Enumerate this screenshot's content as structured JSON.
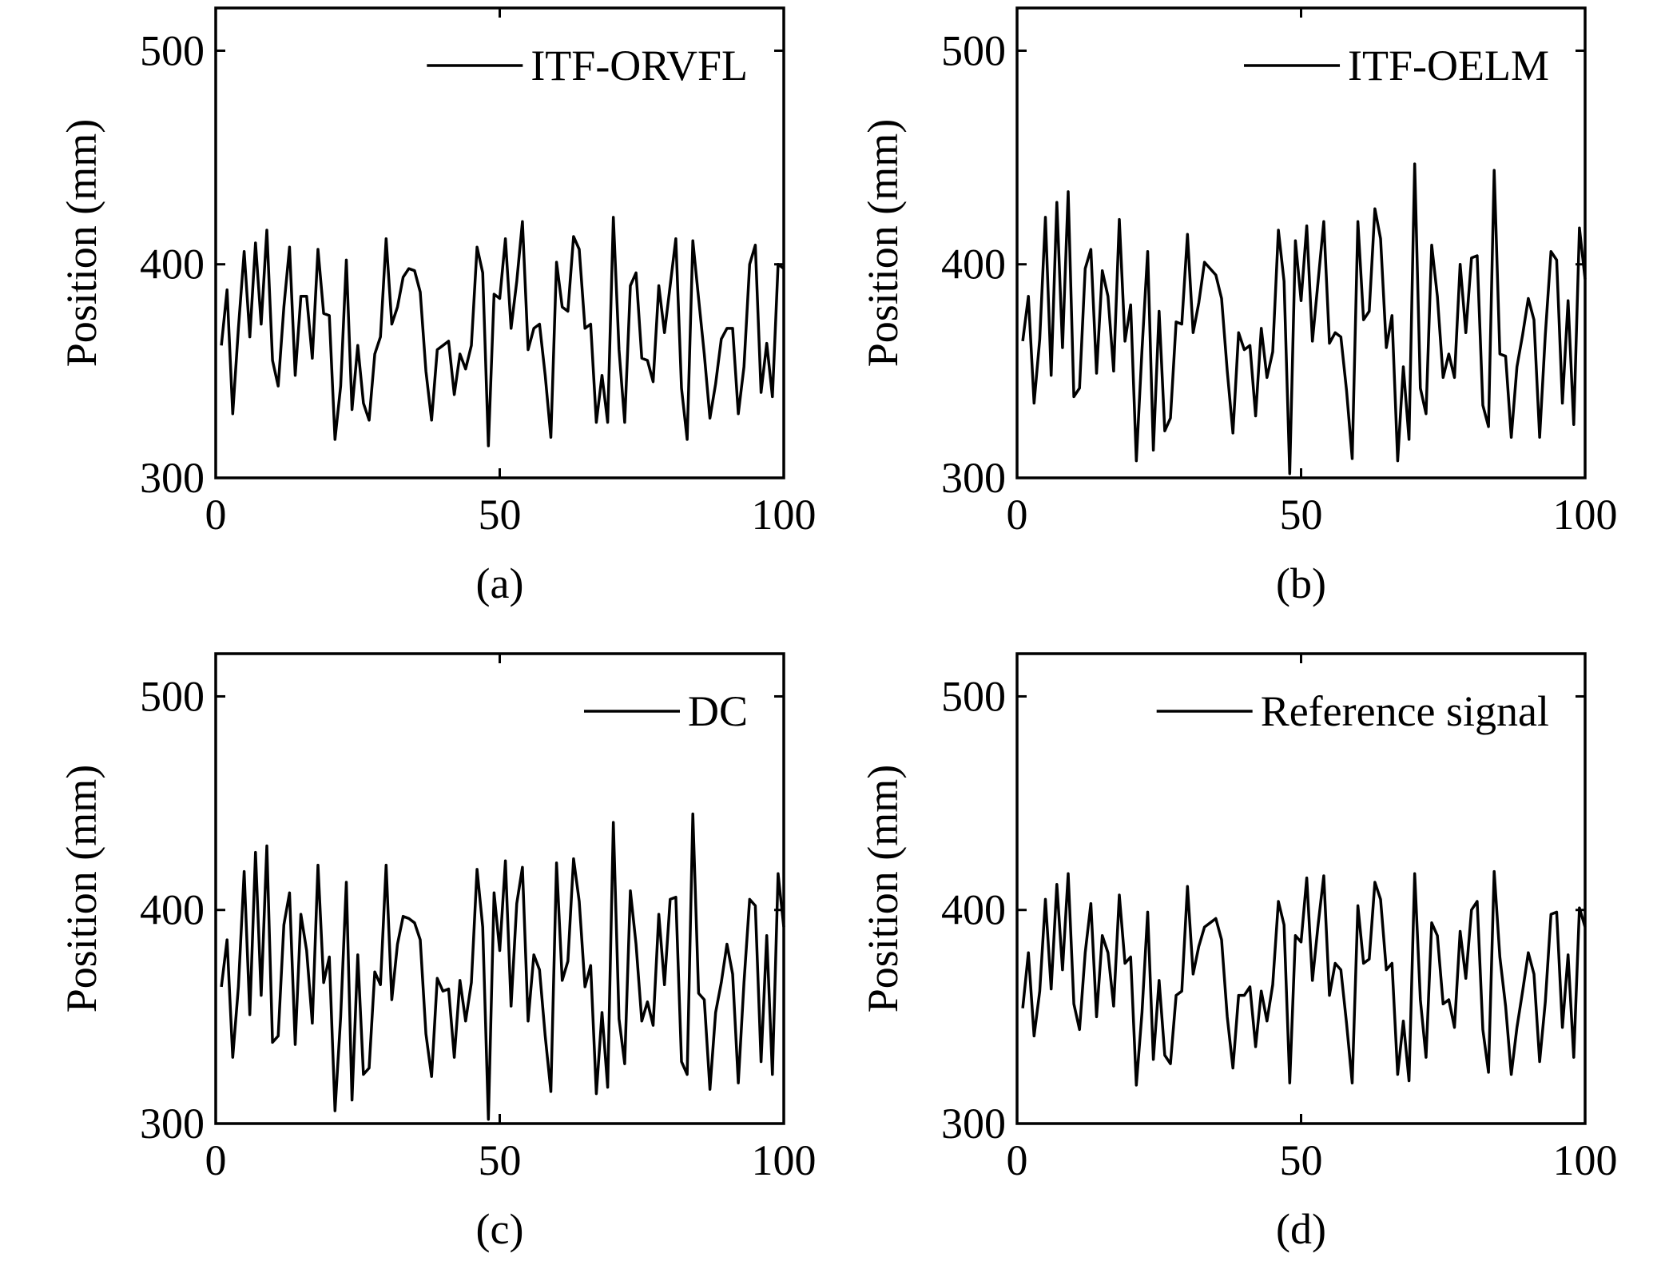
{
  "chart_data": [
    {
      "type": "line",
      "xlim": [
        0,
        100
      ],
      "ylim": [
        300,
        520
      ],
      "xticks": [
        "0",
        "50",
        "100"
      ],
      "yticks": [
        "300",
        "400",
        "500"
      ],
      "ylabel": "Position (mm)",
      "caption": "(a)",
      "legend_position": "top-right",
      "grid": false,
      "series": [
        {
          "name": "ITF-ORVFL",
          "color": "#000000",
          "x": [
            1,
            2,
            3,
            4,
            5,
            6,
            7,
            8,
            9,
            10,
            11,
            12,
            13,
            14,
            15,
            16,
            17,
            18,
            19,
            20,
            21,
            22,
            23,
            24,
            25,
            26,
            27,
            28,
            29,
            30,
            31,
            32,
            33,
            34,
            35,
            36,
            37,
            38,
            39,
            40,
            41,
            42,
            43,
            44,
            45,
            46,
            47,
            48,
            49,
            50,
            51,
            52,
            53,
            54,
            55,
            56,
            57,
            58,
            59,
            60,
            61,
            62,
            63,
            64,
            65,
            66,
            67,
            68,
            69,
            70,
            71,
            72,
            73,
            74,
            75,
            76,
            77,
            78,
            79,
            80,
            81,
            82,
            83,
            84,
            85,
            86,
            87,
            88,
            89,
            90,
            91,
            92,
            93,
            94,
            95,
            96,
            97,
            98,
            99,
            100
          ],
          "y": [
            362,
            388,
            330,
            370,
            406,
            366,
            410,
            372,
            416,
            355,
            343,
            380,
            408,
            348,
            385,
            385,
            356,
            407,
            377,
            376,
            318,
            343,
            402,
            332,
            362,
            335,
            327,
            358,
            366,
            412,
            372,
            380,
            394,
            398,
            397,
            387,
            350,
            327,
            360,
            362,
            364,
            339,
            358,
            351,
            362,
            408,
            396,
            315,
            386,
            384,
            412,
            370,
            392,
            420,
            360,
            370,
            372,
            348,
            319,
            401,
            380,
            378,
            413,
            407,
            370,
            372,
            326,
            348,
            326,
            422,
            360,
            326,
            390,
            396,
            356,
            355,
            345,
            390,
            368,
            390,
            412,
            342,
            318,
            411,
            384,
            358,
            328,
            344,
            365,
            370,
            370,
            330,
            352,
            400,
            409,
            340,
            363,
            338,
            400,
            398
          ]
        }
      ]
    },
    {
      "type": "line",
      "xlim": [
        0,
        100
      ],
      "ylim": [
        300,
        520
      ],
      "xticks": [
        "0",
        "50",
        "100"
      ],
      "yticks": [
        "300",
        "400",
        "500"
      ],
      "ylabel": "Position (mm)",
      "caption": "(b)",
      "legend_position": "top-right",
      "grid": false,
      "series": [
        {
          "name": "ITF-OELM",
          "color": "#000000",
          "x": [
            1,
            2,
            3,
            4,
            5,
            6,
            7,
            8,
            9,
            10,
            11,
            12,
            13,
            14,
            15,
            16,
            17,
            18,
            19,
            20,
            21,
            22,
            23,
            24,
            25,
            26,
            27,
            28,
            29,
            30,
            31,
            32,
            33,
            34,
            35,
            36,
            37,
            38,
            39,
            40,
            41,
            42,
            43,
            44,
            45,
            46,
            47,
            48,
            49,
            50,
            51,
            52,
            53,
            54,
            55,
            56,
            57,
            58,
            59,
            60,
            61,
            62,
            63,
            64,
            65,
            66,
            67,
            68,
            69,
            70,
            71,
            72,
            73,
            74,
            75,
            76,
            77,
            78,
            79,
            80,
            81,
            82,
            83,
            84,
            85,
            86,
            87,
            88,
            89,
            90,
            91,
            92,
            93,
            94,
            95,
            96,
            97,
            98,
            99,
            100
          ],
          "y": [
            364,
            385,
            335,
            365,
            422,
            348,
            429,
            361,
            434,
            338,
            342,
            398,
            407,
            349,
            397,
            385,
            350,
            421,
            364,
            381,
            308,
            360,
            406,
            313,
            378,
            322,
            328,
            373,
            372,
            414,
            368,
            382,
            401,
            398,
            395,
            384,
            350,
            321,
            368,
            360,
            362,
            329,
            370,
            347,
            359,
            416,
            392,
            302,
            411,
            383,
            418,
            364,
            392,
            420,
            363,
            368,
            366,
            341,
            309,
            420,
            374,
            378,
            426,
            412,
            361,
            376,
            308,
            352,
            318,
            447,
            342,
            330,
            409,
            385,
            347,
            358,
            347,
            400,
            368,
            403,
            404,
            334,
            324,
            444,
            358,
            357,
            319,
            352,
            367,
            384,
            374,
            319,
            367,
            406,
            402,
            335,
            383,
            325,
            417,
            393
          ]
        }
      ]
    },
    {
      "type": "line",
      "xlim": [
        0,
        100
      ],
      "ylim": [
        300,
        520
      ],
      "xticks": [
        "0",
        "50",
        "100"
      ],
      "yticks": [
        "300",
        "400",
        "500"
      ],
      "ylabel": "Position (mm)",
      "caption": "(c)",
      "legend_position": "top-right",
      "grid": false,
      "series": [
        {
          "name": "DC",
          "color": "#000000",
          "x": [
            1,
            2,
            3,
            4,
            5,
            6,
            7,
            8,
            9,
            10,
            11,
            12,
            13,
            14,
            15,
            16,
            17,
            18,
            19,
            20,
            21,
            22,
            23,
            24,
            25,
            26,
            27,
            28,
            29,
            30,
            31,
            32,
            33,
            34,
            35,
            36,
            37,
            38,
            39,
            40,
            41,
            42,
            43,
            44,
            45,
            46,
            47,
            48,
            49,
            50,
            51,
            52,
            53,
            54,
            55,
            56,
            57,
            58,
            59,
            60,
            61,
            62,
            63,
            64,
            65,
            66,
            67,
            68,
            69,
            70,
            71,
            72,
            73,
            74,
            75,
            76,
            77,
            78,
            79,
            80,
            81,
            82,
            83,
            84,
            85,
            86,
            87,
            88,
            89,
            90,
            91,
            92,
            93,
            94,
            95,
            96,
            97,
            98,
            99,
            100
          ],
          "y": [
            364,
            386,
            331,
            364,
            418,
            351,
            427,
            360,
            430,
            338,
            341,
            393,
            408,
            337,
            398,
            381,
            347,
            421,
            366,
            378,
            306,
            350,
            413,
            311,
            379,
            323,
            326,
            371,
            365,
            421,
            358,
            384,
            397,
            396,
            394,
            386,
            342,
            322,
            368,
            362,
            363,
            331,
            367,
            348,
            366,
            419,
            392,
            302,
            408,
            381,
            423,
            355,
            403,
            420,
            348,
            379,
            372,
            341,
            315,
            422,
            367,
            376,
            424,
            404,
            364,
            374,
            314,
            352,
            317,
            441,
            349,
            328,
            409,
            384,
            348,
            357,
            346,
            398,
            365,
            405,
            406,
            329,
            323,
            445,
            361,
            358,
            316,
            352,
            366,
            384,
            370,
            319,
            366,
            405,
            402,
            329,
            388,
            323,
            417,
            392
          ]
        }
      ]
    },
    {
      "type": "line",
      "xlim": [
        0,
        100
      ],
      "ylim": [
        300,
        520
      ],
      "xticks": [
        "0",
        "50",
        "100"
      ],
      "yticks": [
        "300",
        "400",
        "500"
      ],
      "ylabel": "Position (mm)",
      "caption": "(d)",
      "legend_position": "top-right",
      "grid": false,
      "series": [
        {
          "name": "Reference signal",
          "color": "#000000",
          "x": [
            1,
            2,
            3,
            4,
            5,
            6,
            7,
            8,
            9,
            10,
            11,
            12,
            13,
            14,
            15,
            16,
            17,
            18,
            19,
            20,
            21,
            22,
            23,
            24,
            25,
            26,
            27,
            28,
            29,
            30,
            31,
            32,
            33,
            34,
            35,
            36,
            37,
            38,
            39,
            40,
            41,
            42,
            43,
            44,
            45,
            46,
            47,
            48,
            49,
            50,
            51,
            52,
            53,
            54,
            55,
            56,
            57,
            58,
            59,
            60,
            61,
            62,
            63,
            64,
            65,
            66,
            67,
            68,
            69,
            70,
            71,
            72,
            73,
            74,
            75,
            76,
            77,
            78,
            79,
            80,
            81,
            82,
            83,
            84,
            85,
            86,
            87,
            88,
            89,
            90,
            91,
            92,
            93,
            94,
            95,
            96,
            97,
            98,
            99,
            100
          ],
          "y": [
            354,
            380,
            341,
            362,
            405,
            363,
            412,
            372,
            417,
            356,
            344,
            380,
            403,
            350,
            388,
            380,
            355,
            407,
            375,
            378,
            318,
            352,
            399,
            330,
            367,
            332,
            328,
            360,
            362,
            411,
            370,
            383,
            392,
            394,
            396,
            386,
            350,
            326,
            360,
            360,
            364,
            336,
            362,
            348,
            365,
            404,
            393,
            319,
            388,
            385,
            415,
            367,
            393,
            416,
            360,
            375,
            372,
            347,
            319,
            402,
            375,
            377,
            413,
            405,
            372,
            375,
            323,
            348,
            320,
            417,
            358,
            331,
            394,
            388,
            356,
            358,
            345,
            390,
            368,
            400,
            404,
            344,
            324,
            418,
            378,
            355,
            323,
            345,
            362,
            380,
            370,
            329,
            357,
            398,
            399,
            345,
            379,
            331,
            401,
            392
          ]
        }
      ]
    }
  ]
}
